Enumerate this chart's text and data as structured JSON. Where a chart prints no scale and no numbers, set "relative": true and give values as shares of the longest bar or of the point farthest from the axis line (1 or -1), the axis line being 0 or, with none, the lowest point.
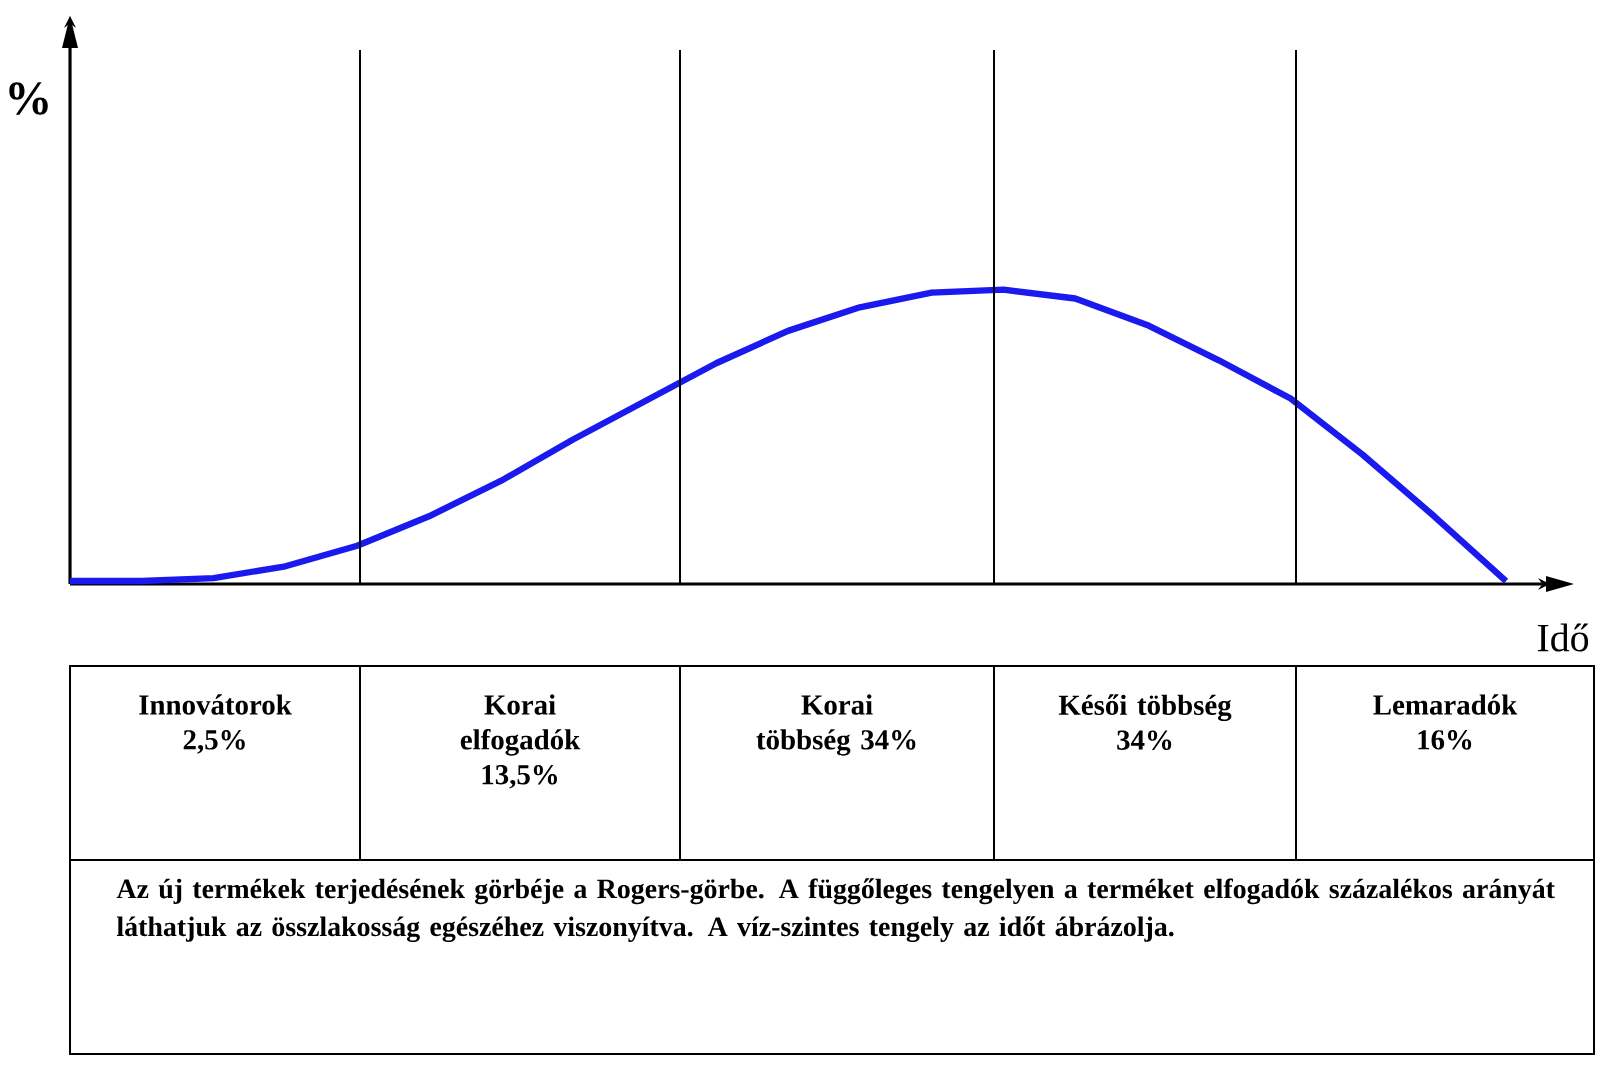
{
  "chart_data": {
    "type": "line",
    "relative": true,
    "xlabel": "Idő",
    "ylabel": "%",
    "grid": "x",
    "categories": [
      null,
      null,
      null,
      null,
      null,
      null,
      null,
      null,
      null,
      null,
      null,
      null,
      null,
      null,
      null,
      null,
      null,
      null,
      null,
      null,
      null
    ],
    "series": [
      {
        "color": "#1a1aee",
        "values": [
          0.01,
          0.01,
          0.02,
          0.06,
          0.13,
          0.23,
          0.35,
          0.49,
          0.62,
          0.75,
          0.86,
          0.94,
          0.99,
          1,
          0.97,
          0.88,
          0.76,
          0.63,
          0.44,
          0.23,
          0.01
        ]
      }
    ],
    "line_style": "solid",
    "marker": "none",
    "annotations": [
      "Innovátorok 2,5%",
      "Korai elfogadók 13,5%",
      "Korai többség 34%",
      "Késői többség 34%",
      "Lemaradók 16%",
      "Az új termékek terjedésének görbéje a Rogers-görbe. A függőleges tengelyen a terméket elfogadók százalékos arányát láthatjuk az összlakosság egészéhez viszonyítva. A víz-szintes tengely az időt ábrázolja."
    ]
  }
}
